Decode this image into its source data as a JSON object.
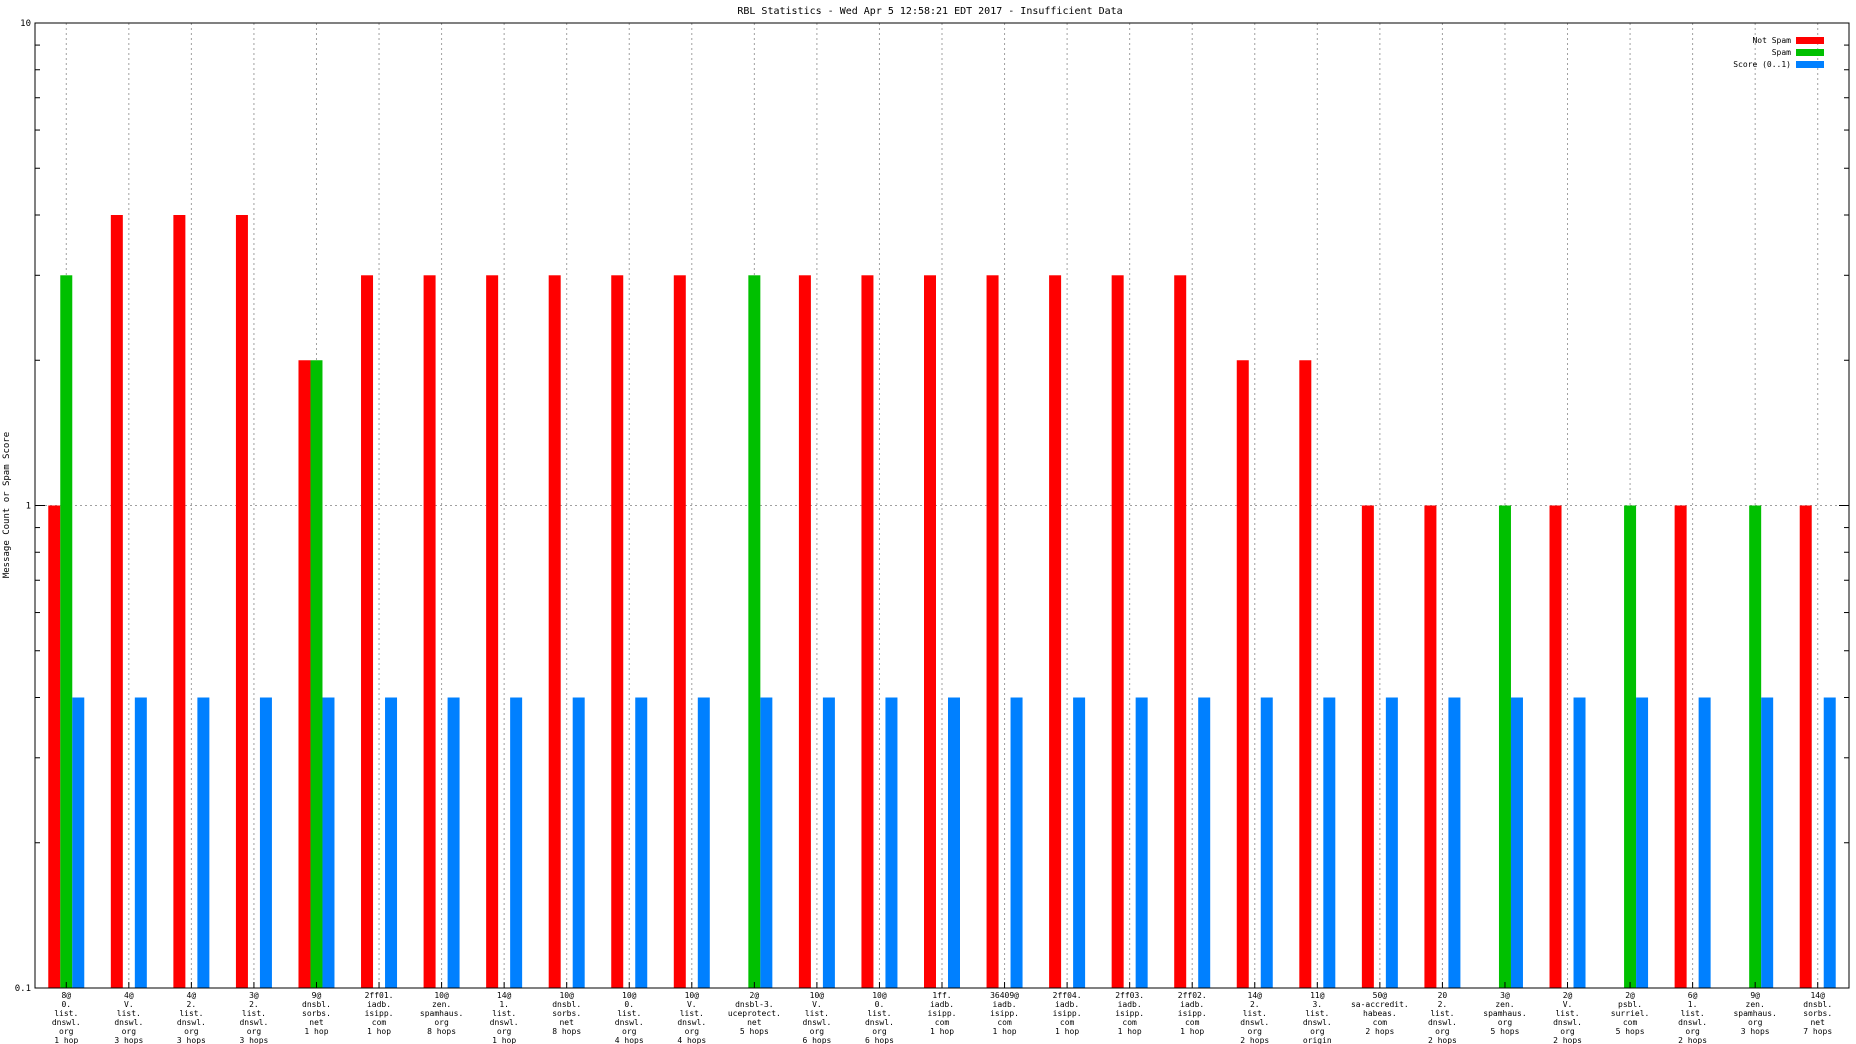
{
  "chart_data": {
    "type": "bar",
    "title": "RBL Statistics - Wed Apr  5 12:58:21 EDT 2017 - Insufficient Data",
    "ylabel": "Message Count or Spam Score",
    "xlabel": "",
    "yscale": "log",
    "ylim": [
      0.1,
      10
    ],
    "yticks": [
      "0.1",
      "1",
      "10"
    ],
    "grid": true,
    "legend_position": "top-right",
    "categories": [
      [
        "8@",
        "0.",
        "list.",
        "dnswl.",
        "org",
        "1 hop"
      ],
      [
        "4@",
        "V.",
        "list.",
        "dnswl.",
        "org",
        "3 hops"
      ],
      [
        "4@",
        "2.",
        "list.",
        "dnswl.",
        "org",
        "3 hops"
      ],
      [
        "3@",
        "2.",
        "list.",
        "dnswl.",
        "org",
        "3 hops"
      ],
      [
        "9@",
        "dnsbl.",
        "sorbs.",
        "net",
        "1 hop"
      ],
      [
        "2ff01.",
        "iadb.",
        "isipp.",
        "com",
        "1 hop"
      ],
      [
        "10@",
        "zen.",
        "spamhaus.",
        "org",
        "8 hops"
      ],
      [
        "14@",
        "1.",
        "list.",
        "dnswl.",
        "org",
        "1 hop"
      ],
      [
        "10@",
        "dnsbl.",
        "sorbs.",
        "net",
        "8 hops"
      ],
      [
        "10@",
        "0.",
        "list.",
        "dnswl.",
        "org",
        "4 hops"
      ],
      [
        "10@",
        "V.",
        "list.",
        "dnswl.",
        "org",
        "4 hops"
      ],
      [
        "2@",
        "dnsbl-3.",
        "uceprotect.",
        "net",
        "5 hops"
      ],
      [
        "10@",
        "V.",
        "list.",
        "dnswl.",
        "org",
        "6 hops"
      ],
      [
        "10@",
        "0.",
        "list.",
        "dnswl.",
        "org",
        "6 hops"
      ],
      [
        "1ff.",
        "iadb.",
        "isipp.",
        "com",
        "1 hop"
      ],
      [
        "36409@",
        "iadb.",
        "isipp.",
        "com",
        "1 hop"
      ],
      [
        "2ff04.",
        "iadb.",
        "isipp.",
        "com",
        "1 hop"
      ],
      [
        "2ff03.",
        "iadb.",
        "isipp.",
        "com",
        "1 hop"
      ],
      [
        "2ff02.",
        "iadb.",
        "isipp.",
        "com",
        "1 hop"
      ],
      [
        "14@",
        "2.",
        "list.",
        "dnswl.",
        "org",
        "2 hops"
      ],
      [
        "11@",
        "3.",
        "list.",
        "dnswl.",
        "org",
        "origin"
      ],
      [
        "50@",
        "sa-accredit.",
        "habeas.",
        "com",
        "2 hops"
      ],
      [
        "20",
        "2.",
        "list.",
        "dnswl.",
        "org",
        "2 hops"
      ],
      [
        "3@",
        "zen.",
        "spamhaus.",
        "org",
        "5 hops"
      ],
      [
        "2@",
        "V.",
        "list.",
        "dnswl.",
        "org",
        "2 hops"
      ],
      [
        "2@",
        "psbl.",
        "surriel.",
        "com",
        "5 hops"
      ],
      [
        "6@",
        "1.",
        "list.",
        "dnswl.",
        "org",
        "2 hops"
      ],
      [
        "9@",
        "zen.",
        "spamhaus.",
        "org",
        "3 hops"
      ],
      [
        "14@",
        "dnsbl.",
        "sorbs.",
        "net",
        "7 hops"
      ]
    ],
    "series": [
      {
        "name": "Not Spam",
        "color": "#ff0000",
        "values": [
          1,
          4,
          4,
          4,
          2,
          3,
          3,
          3,
          3,
          3,
          3,
          null,
          3,
          3,
          3,
          3,
          3,
          3,
          3,
          2,
          2,
          1,
          1,
          null,
          1,
          null,
          1,
          null,
          1
        ]
      },
      {
        "name": "Spam",
        "color": "#00c000",
        "values": [
          3,
          null,
          null,
          null,
          2,
          null,
          null,
          null,
          null,
          null,
          null,
          3,
          null,
          null,
          null,
          null,
          null,
          null,
          null,
          null,
          null,
          null,
          null,
          1,
          null,
          1,
          null,
          1,
          null
        ]
      },
      {
        "name": "Score (0..1)",
        "color": "#0080ff",
        "values": [
          0.4,
          0.4,
          0.4,
          0.4,
          0.4,
          0.4,
          0.4,
          0.4,
          0.4,
          0.4,
          0.4,
          0.4,
          0.4,
          0.4,
          0.4,
          0.4,
          0.4,
          0.4,
          0.4,
          0.4,
          0.4,
          0.4,
          0.4,
          0.4,
          0.4,
          0.4,
          0.4,
          0.4,
          0.4
        ]
      }
    ]
  }
}
